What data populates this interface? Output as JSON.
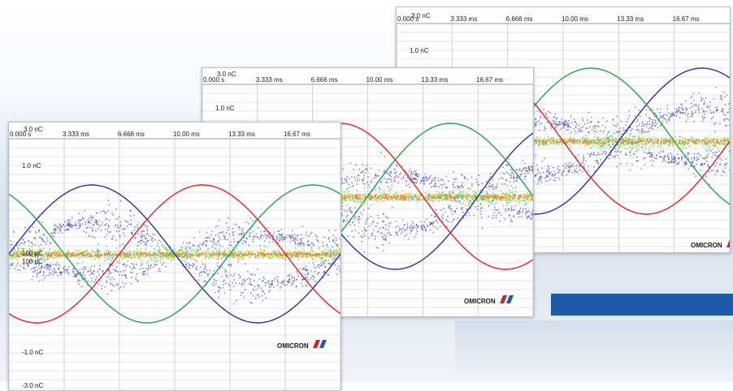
{
  "brand": {
    "name": "OMICRON",
    "logo_red": "#c8262b",
    "logo_blue": "#1f5aa6"
  },
  "colors": {
    "phase_l1": "#2f2fa0",
    "phase_l2": "#22a447",
    "phase_l3": "#e02222",
    "accent_bar": "#1f5aa6"
  },
  "chart_data": [
    {
      "type": "scatter",
      "title": "",
      "x_tick_labels": [
        "0.000 s",
        "3.333 ms",
        "6.666 ms",
        "10.00 ms",
        "13.33 ms",
        "16.67 ms"
      ],
      "xlim": [
        0,
        20
      ],
      "y_labels": [
        "3.0 nC",
        "1.0 nC",
        "100 pC",
        "100 pC",
        "-1.0 nC",
        "-3.0 nC"
      ],
      "ylim": [
        -3.0,
        3.0
      ],
      "grid": true,
      "series": [
        {
          "phase_deg": 0,
          "amplitude_nC": 2.4,
          "color": "#2f2fa0"
        },
        {
          "phase_deg": 120,
          "amplitude_nC": 2.4,
          "color": "#22a447"
        },
        {
          "phase_deg": 240,
          "amplitude_nC": 2.4,
          "color": "#e02222"
        }
      ]
    },
    {
      "type": "scatter",
      "title": "",
      "x_tick_labels": [
        "0.000 s",
        "3.333 ms",
        "6.666 ms",
        "10.00 ms",
        "13.33 ms",
        "16.67 ms"
      ],
      "xlim": [
        0,
        20
      ],
      "y_labels": [
        "3.0 nC",
        "1.0 nC"
      ],
      "ylim": [
        -3.0,
        3.0
      ],
      "grid": true,
      "series": [
        {
          "phase_deg": 60,
          "amplitude_nC": 2.4,
          "color": "#2f2fa0"
        },
        {
          "phase_deg": 180,
          "amplitude_nC": 2.4,
          "color": "#22a447"
        },
        {
          "phase_deg": 300,
          "amplitude_nC": 2.4,
          "color": "#e02222"
        }
      ]
    },
    {
      "type": "scatter",
      "title": "",
      "x_tick_labels": [
        "0.000 s",
        "3.333 ms",
        "6.666 ms",
        "10.00 ms",
        "13.33 ms",
        "16.67 ms"
      ],
      "xlim": [
        0,
        20
      ],
      "y_labels": [
        "3.0 nC",
        "1.0 nC"
      ],
      "ylim": [
        -3.0,
        3.0
      ],
      "grid": true,
      "series": [
        {
          "phase_deg": 120,
          "amplitude_nC": 2.4,
          "color": "#2f2fa0"
        },
        {
          "phase_deg": 240,
          "amplitude_nC": 2.4,
          "color": "#22a447"
        },
        {
          "phase_deg": 0,
          "amplitude_nC": 2.4,
          "color": "#e02222"
        }
      ]
    }
  ]
}
